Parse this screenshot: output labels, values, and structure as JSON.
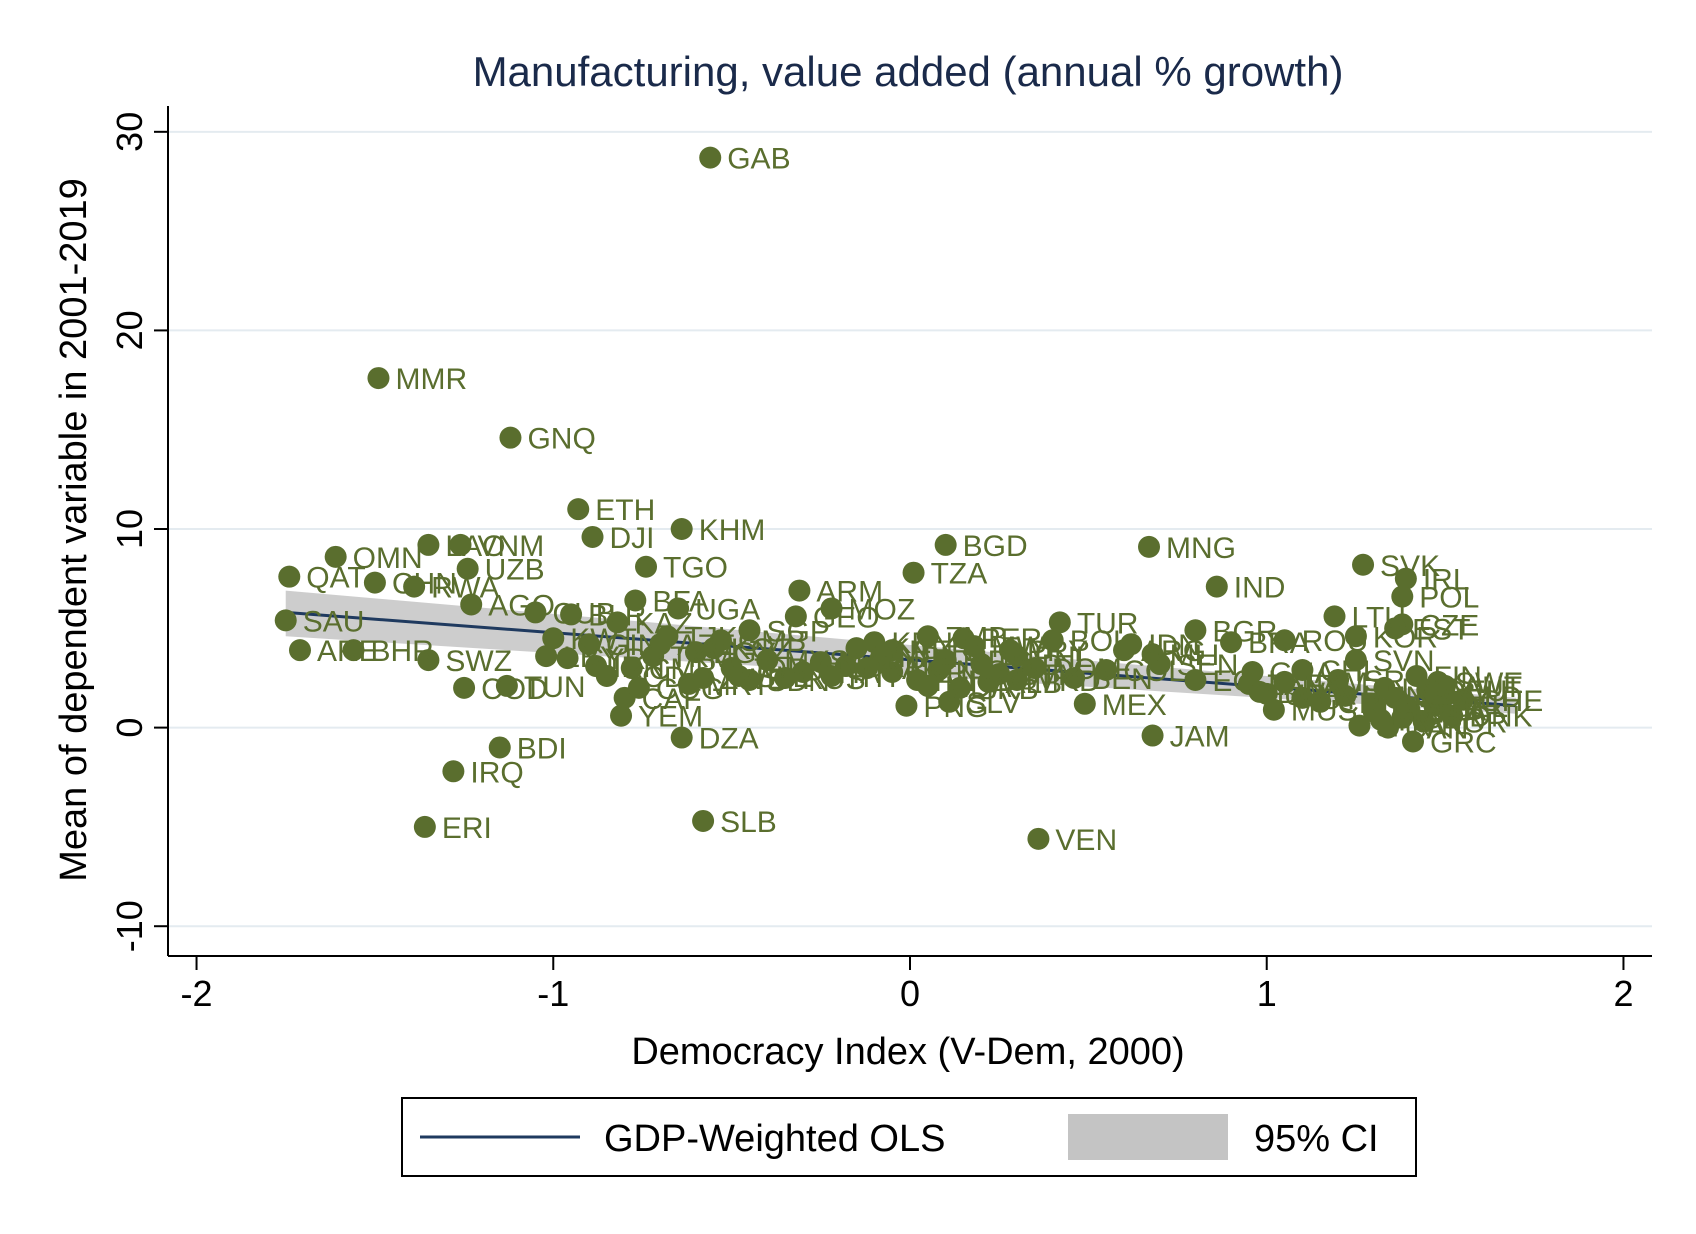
{
  "chart_data": {
    "type": "scatter",
    "title": "Manufacturing, value added (annual % growth)",
    "xlabel": "Democracy Index (V-Dem, 2000)",
    "ylabel": "Mean of dependent variable in 2001-2019",
    "xlim": [
      -2.08,
      2.08
    ],
    "ylim": [
      -11.5,
      31.3
    ],
    "xticks": [
      -2,
      -1,
      0,
      1,
      2
    ],
    "yticks": [
      -10,
      0,
      10,
      20,
      30
    ],
    "grid": "horizontal",
    "colors": {
      "points": "#5a6e2e",
      "line": "#1f3a5f",
      "ci": "#c4c4c4",
      "title": "#1a2a4a",
      "grid": "#e4ebf0"
    },
    "legend": {
      "position": "bottom",
      "items": [
        {
          "label": "GDP-Weighted OLS",
          "type": "line"
        },
        {
          "label": "95% CI",
          "type": "band"
        }
      ]
    },
    "fit": {
      "x": [
        -1.75,
        1.7
      ],
      "y": [
        5.8,
        1.1
      ],
      "ci_upper": [
        6.9,
        1.5
      ],
      "ci_lower": [
        4.6,
        0.7
      ]
    },
    "points": [
      {
        "label": "GAB",
        "x": -0.56,
        "y": 28.7
      },
      {
        "label": "MMR",
        "x": -1.49,
        "y": 17.6
      },
      {
        "label": "GNQ",
        "x": -1.12,
        "y": 14.6
      },
      {
        "label": "ETH",
        "x": -0.93,
        "y": 11.0
      },
      {
        "label": "KHM",
        "x": -0.64,
        "y": 10.0
      },
      {
        "label": "DJI",
        "x": -0.89,
        "y": 9.6
      },
      {
        "label": "BGD",
        "x": 0.1,
        "y": 9.2
      },
      {
        "label": "MNG",
        "x": 0.67,
        "y": 9.1
      },
      {
        "label": "VNM",
        "x": -1.26,
        "y": 9.2
      },
      {
        "label": "LAO",
        "x": -1.35,
        "y": 9.2
      },
      {
        "label": "OMN",
        "x": -1.61,
        "y": 8.6
      },
      {
        "label": "UZB",
        "x": -1.24,
        "y": 8.0
      },
      {
        "label": "TGO",
        "x": -0.74,
        "y": 8.1
      },
      {
        "label": "TZA",
        "x": 0.01,
        "y": 7.8
      },
      {
        "label": "SVK",
        "x": 1.27,
        "y": 8.2
      },
      {
        "label": "IRL",
        "x": 1.39,
        "y": 7.5
      },
      {
        "label": "QAT",
        "x": -1.74,
        "y": 7.6
      },
      {
        "label": "CHN",
        "x": -1.5,
        "y": 7.3
      },
      {
        "label": "RWA",
        "x": -1.39,
        "y": 7.1
      },
      {
        "label": "IND",
        "x": 0.86,
        "y": 7.1
      },
      {
        "label": "ARM",
        "x": -0.31,
        "y": 6.9
      },
      {
        "label": "POL",
        "x": 1.38,
        "y": 6.6
      },
      {
        "label": "AGO",
        "x": -1.23,
        "y": 6.2
      },
      {
        "label": "MOZ",
        "x": -0.22,
        "y": 6.0
      },
      {
        "label": "UGA",
        "x": -0.65,
        "y": 6.0
      },
      {
        "label": "BFA",
        "x": -0.77,
        "y": 6.4
      },
      {
        "label": "LTU",
        "x": 1.19,
        "y": 5.6
      },
      {
        "label": "SAU",
        "x": -1.75,
        "y": 5.4
      },
      {
        "label": "TUR",
        "x": 0.42,
        "y": 5.3
      },
      {
        "label": "CZE",
        "x": 1.38,
        "y": 5.2
      },
      {
        "label": "EST",
        "x": 1.36,
        "y": 5.0
      },
      {
        "label": "BGR",
        "x": 0.8,
        "y": 4.9
      },
      {
        "label": "KOR",
        "x": 1.25,
        "y": 4.6
      },
      {
        "label": "ROU",
        "x": 1.05,
        "y": 4.4
      },
      {
        "label": "ARE",
        "x": -1.71,
        "y": 3.9
      },
      {
        "label": "BHR",
        "x": -1.56,
        "y": 3.9
      },
      {
        "label": "SWZ",
        "x": -1.35,
        "y": 3.4
      },
      {
        "label": "SVN",
        "x": 1.25,
        "y": 3.4
      },
      {
        "label": "COD",
        "x": -1.25,
        "y": 2.0
      },
      {
        "label": "TUN",
        "x": -1.13,
        "y": 2.1
      },
      {
        "label": "YEM",
        "x": -0.81,
        "y": 0.6
      },
      {
        "label": "DZA",
        "x": -0.64,
        "y": -0.5
      },
      {
        "label": "BDI",
        "x": -1.15,
        "y": -1.0
      },
      {
        "label": "IRQ",
        "x": -1.28,
        "y": -2.2
      },
      {
        "label": "ERI",
        "x": -1.36,
        "y": -5.0
      },
      {
        "label": "SLB",
        "x": -0.58,
        "y": -4.7
      },
      {
        "label": "VEN",
        "x": 0.36,
        "y": -5.6
      },
      {
        "label": "JAM",
        "x": 0.68,
        "y": -0.4
      },
      {
        "label": "MEX",
        "x": 0.49,
        "y": 1.2
      },
      {
        "label": "PNG",
        "x": -0.01,
        "y": 1.1
      },
      {
        "label": "SLV",
        "x": 0.11,
        "y": 1.3
      },
      {
        "label": "BEN",
        "x": 0.46,
        "y": 2.5
      },
      {
        "label": "GRC",
        "x": 1.41,
        "y": -0.7
      },
      {
        "label": "ECU",
        "x": 0.8,
        "y": 2.4
      },
      {
        "label": "GEO",
        "x": -0.32,
        "y": 5.6
      },
      {
        "label": "SGP",
        "x": -0.45,
        "y": 4.9
      },
      {
        "label": "ZMB",
        "x": 0.05,
        "y": 4.6
      },
      {
        "label": "PER",
        "x": 0.15,
        "y": 4.5
      },
      {
        "label": "IDN",
        "x": 0.62,
        "y": 4.2
      },
      {
        "label": "BRA",
        "x": 0.9,
        "y": 4.3
      },
      {
        "label": "MLI",
        "x": 0.68,
        "y": 3.7
      },
      {
        "label": "KEN",
        "x": -0.1,
        "y": 4.3
      },
      {
        "label": "JOR",
        "x": -0.5,
        "y": 3.0
      },
      {
        "label": "ZWE",
        "x": -0.58,
        "y": 2.5
      },
      {
        "label": "SDN",
        "x": -0.45,
        "y": 2.4
      },
      {
        "label": "MAR",
        "x": -0.25,
        "y": 3.3
      },
      {
        "label": "THA",
        "x": -0.3,
        "y": 2.8
      },
      {
        "label": "KAZ",
        "x": -0.82,
        "y": 5.3
      },
      {
        "label": "BLR",
        "x": -0.95,
        "y": 5.7
      },
      {
        "label": "AZE",
        "x": -0.7,
        "y": 4.2
      },
      {
        "label": "EGY",
        "x": -0.6,
        "y": 3.8
      },
      {
        "label": "CMR",
        "x": -0.78,
        "y": 3.0
      },
      {
        "label": "TCD",
        "x": -0.85,
        "y": 2.6
      },
      {
        "label": "NER",
        "x": -0.05,
        "y": 3.9
      },
      {
        "label": "HND",
        "x": 0.2,
        "y": 3.2
      },
      {
        "label": "PHL",
        "x": 0.3,
        "y": 3.6
      },
      {
        "label": "CHL",
        "x": 1.1,
        "y": 2.9
      },
      {
        "label": "ZAF",
        "x": 0.95,
        "y": 2.2
      },
      {
        "label": "URY",
        "x": 1.0,
        "y": 1.7
      },
      {
        "label": "CRI",
        "x": 1.15,
        "y": 1.3
      },
      {
        "label": "HUN",
        "x": 1.22,
        "y": 1.6
      },
      {
        "label": "ESP",
        "x": 1.3,
        "y": 1.2
      },
      {
        "label": "ITA",
        "x": 1.32,
        "y": 0.4
      },
      {
        "label": "FRA",
        "x": 1.4,
        "y": 0.9
      },
      {
        "label": "DEU",
        "x": 1.45,
        "y": 1.9
      },
      {
        "label": "NLD",
        "x": 1.5,
        "y": 1.6
      },
      {
        "label": "CHE",
        "x": 1.55,
        "y": 1.4
      },
      {
        "label": "SWE",
        "x": 1.48,
        "y": 2.3
      },
      {
        "label": "DNK",
        "x": 1.52,
        "y": 0.6
      },
      {
        "label": "NOR",
        "x": 1.44,
        "y": 0.3
      },
      {
        "label": "FIN",
        "x": 1.42,
        "y": 2.6
      },
      {
        "label": "AUS",
        "x": 1.36,
        "y": 1.5
      },
      {
        "label": "NZL",
        "x": 1.39,
        "y": 1.0
      },
      {
        "label": "USA",
        "x": 1.33,
        "y": 2.0
      },
      {
        "label": "CAN",
        "x": 1.34,
        "y": 0.0
      },
      {
        "label": "GBR",
        "x": 1.38,
        "y": 0.5
      },
      {
        "label": "PRT",
        "x": 1.3,
        "y": 0.8
      },
      {
        "label": "BEL",
        "x": 1.47,
        "y": 1.1
      },
      {
        "label": "AUT",
        "x": 1.5,
        "y": 2.1
      },
      {
        "label": "JPN",
        "x": 1.26,
        "y": 0.1
      },
      {
        "label": "ISR",
        "x": 1.2,
        "y": 2.4
      },
      {
        "label": "CYP",
        "x": 1.1,
        "y": 1.5
      },
      {
        "label": "MUS",
        "x": 1.02,
        "y": 0.9
      },
      {
        "label": "BWA",
        "x": 0.98,
        "y": 1.8
      },
      {
        "label": "NAM",
        "x": 1.05,
        "y": 2.3
      },
      {
        "label": "GHA",
        "x": 0.96,
        "y": 2.8
      },
      {
        "label": "SEN",
        "x": 0.7,
        "y": 3.2
      },
      {
        "label": "COL",
        "x": 0.55,
        "y": 2.9
      },
      {
        "label": "ARG",
        "x": 0.6,
        "y": 3.9
      },
      {
        "label": "DOM",
        "x": 0.35,
        "y": 3.0
      },
      {
        "label": "GTM",
        "x": 0.25,
        "y": 2.7
      },
      {
        "label": "NIC",
        "x": 0.08,
        "y": 2.9
      },
      {
        "label": "BOL",
        "x": 0.4,
        "y": 4.4
      },
      {
        "label": "PRY",
        "x": 0.28,
        "y": 3.9
      },
      {
        "label": "MWI",
        "x": 0.18,
        "y": 4.1
      },
      {
        "label": "MDG",
        "x": 0.1,
        "y": 3.4
      },
      {
        "label": "NPL",
        "x": -0.08,
        "y": 3.6
      },
      {
        "label": "LKA",
        "x": -0.15,
        "y": 4.0
      },
      {
        "label": "UKR",
        "x": -0.18,
        "y": 3.1
      },
      {
        "label": "RUS",
        "x": -0.35,
        "y": 2.5
      },
      {
        "label": "MYS",
        "x": -0.4,
        "y": 3.4
      },
      {
        "label": "KGZ",
        "x": -0.55,
        "y": 4.0
      },
      {
        "label": "TJK",
        "x": -0.68,
        "y": 4.6
      },
      {
        "label": "TKM",
        "x": -0.72,
        "y": 3.6
      },
      {
        "label": "IRN",
        "x": -0.88,
        "y": 3.1
      },
      {
        "label": "SYR",
        "x": -0.96,
        "y": 3.5
      },
      {
        "label": "LBY",
        "x": -1.02,
        "y": 3.6
      },
      {
        "label": "CUB",
        "x": -1.05,
        "y": 5.8
      },
      {
        "label": "KWT",
        "x": -1.0,
        "y": 4.5
      },
      {
        "label": "GIN",
        "x": -0.9,
        "y": 4.2
      },
      {
        "label": "CAF",
        "x": -0.8,
        "y": 1.5
      },
      {
        "label": "COG",
        "x": -0.76,
        "y": 2.0
      },
      {
        "label": "MRT",
        "x": -0.62,
        "y": 2.2
      },
      {
        "label": "SLE",
        "x": -0.48,
        "y": 2.6
      },
      {
        "label": "HTI",
        "x": -0.22,
        "y": 2.6
      },
      {
        "label": "PAK",
        "x": -0.12,
        "y": 3.0
      },
      {
        "label": "LBR",
        "x": -0.05,
        "y": 2.8
      },
      {
        "label": "GMB",
        "x": -0.53,
        "y": 4.4
      },
      {
        "label": "FJI",
        "x": 0.02,
        "y": 2.4
      },
      {
        "label": "ALB",
        "x": 0.22,
        "y": 2.3
      },
      {
        "label": "MKD",
        "x": 0.3,
        "y": 2.4
      },
      {
        "label": "SRB",
        "x": 0.14,
        "y": 2.0
      },
      {
        "label": "MDA",
        "x": 0.05,
        "y": 2.1
      }
    ]
  }
}
